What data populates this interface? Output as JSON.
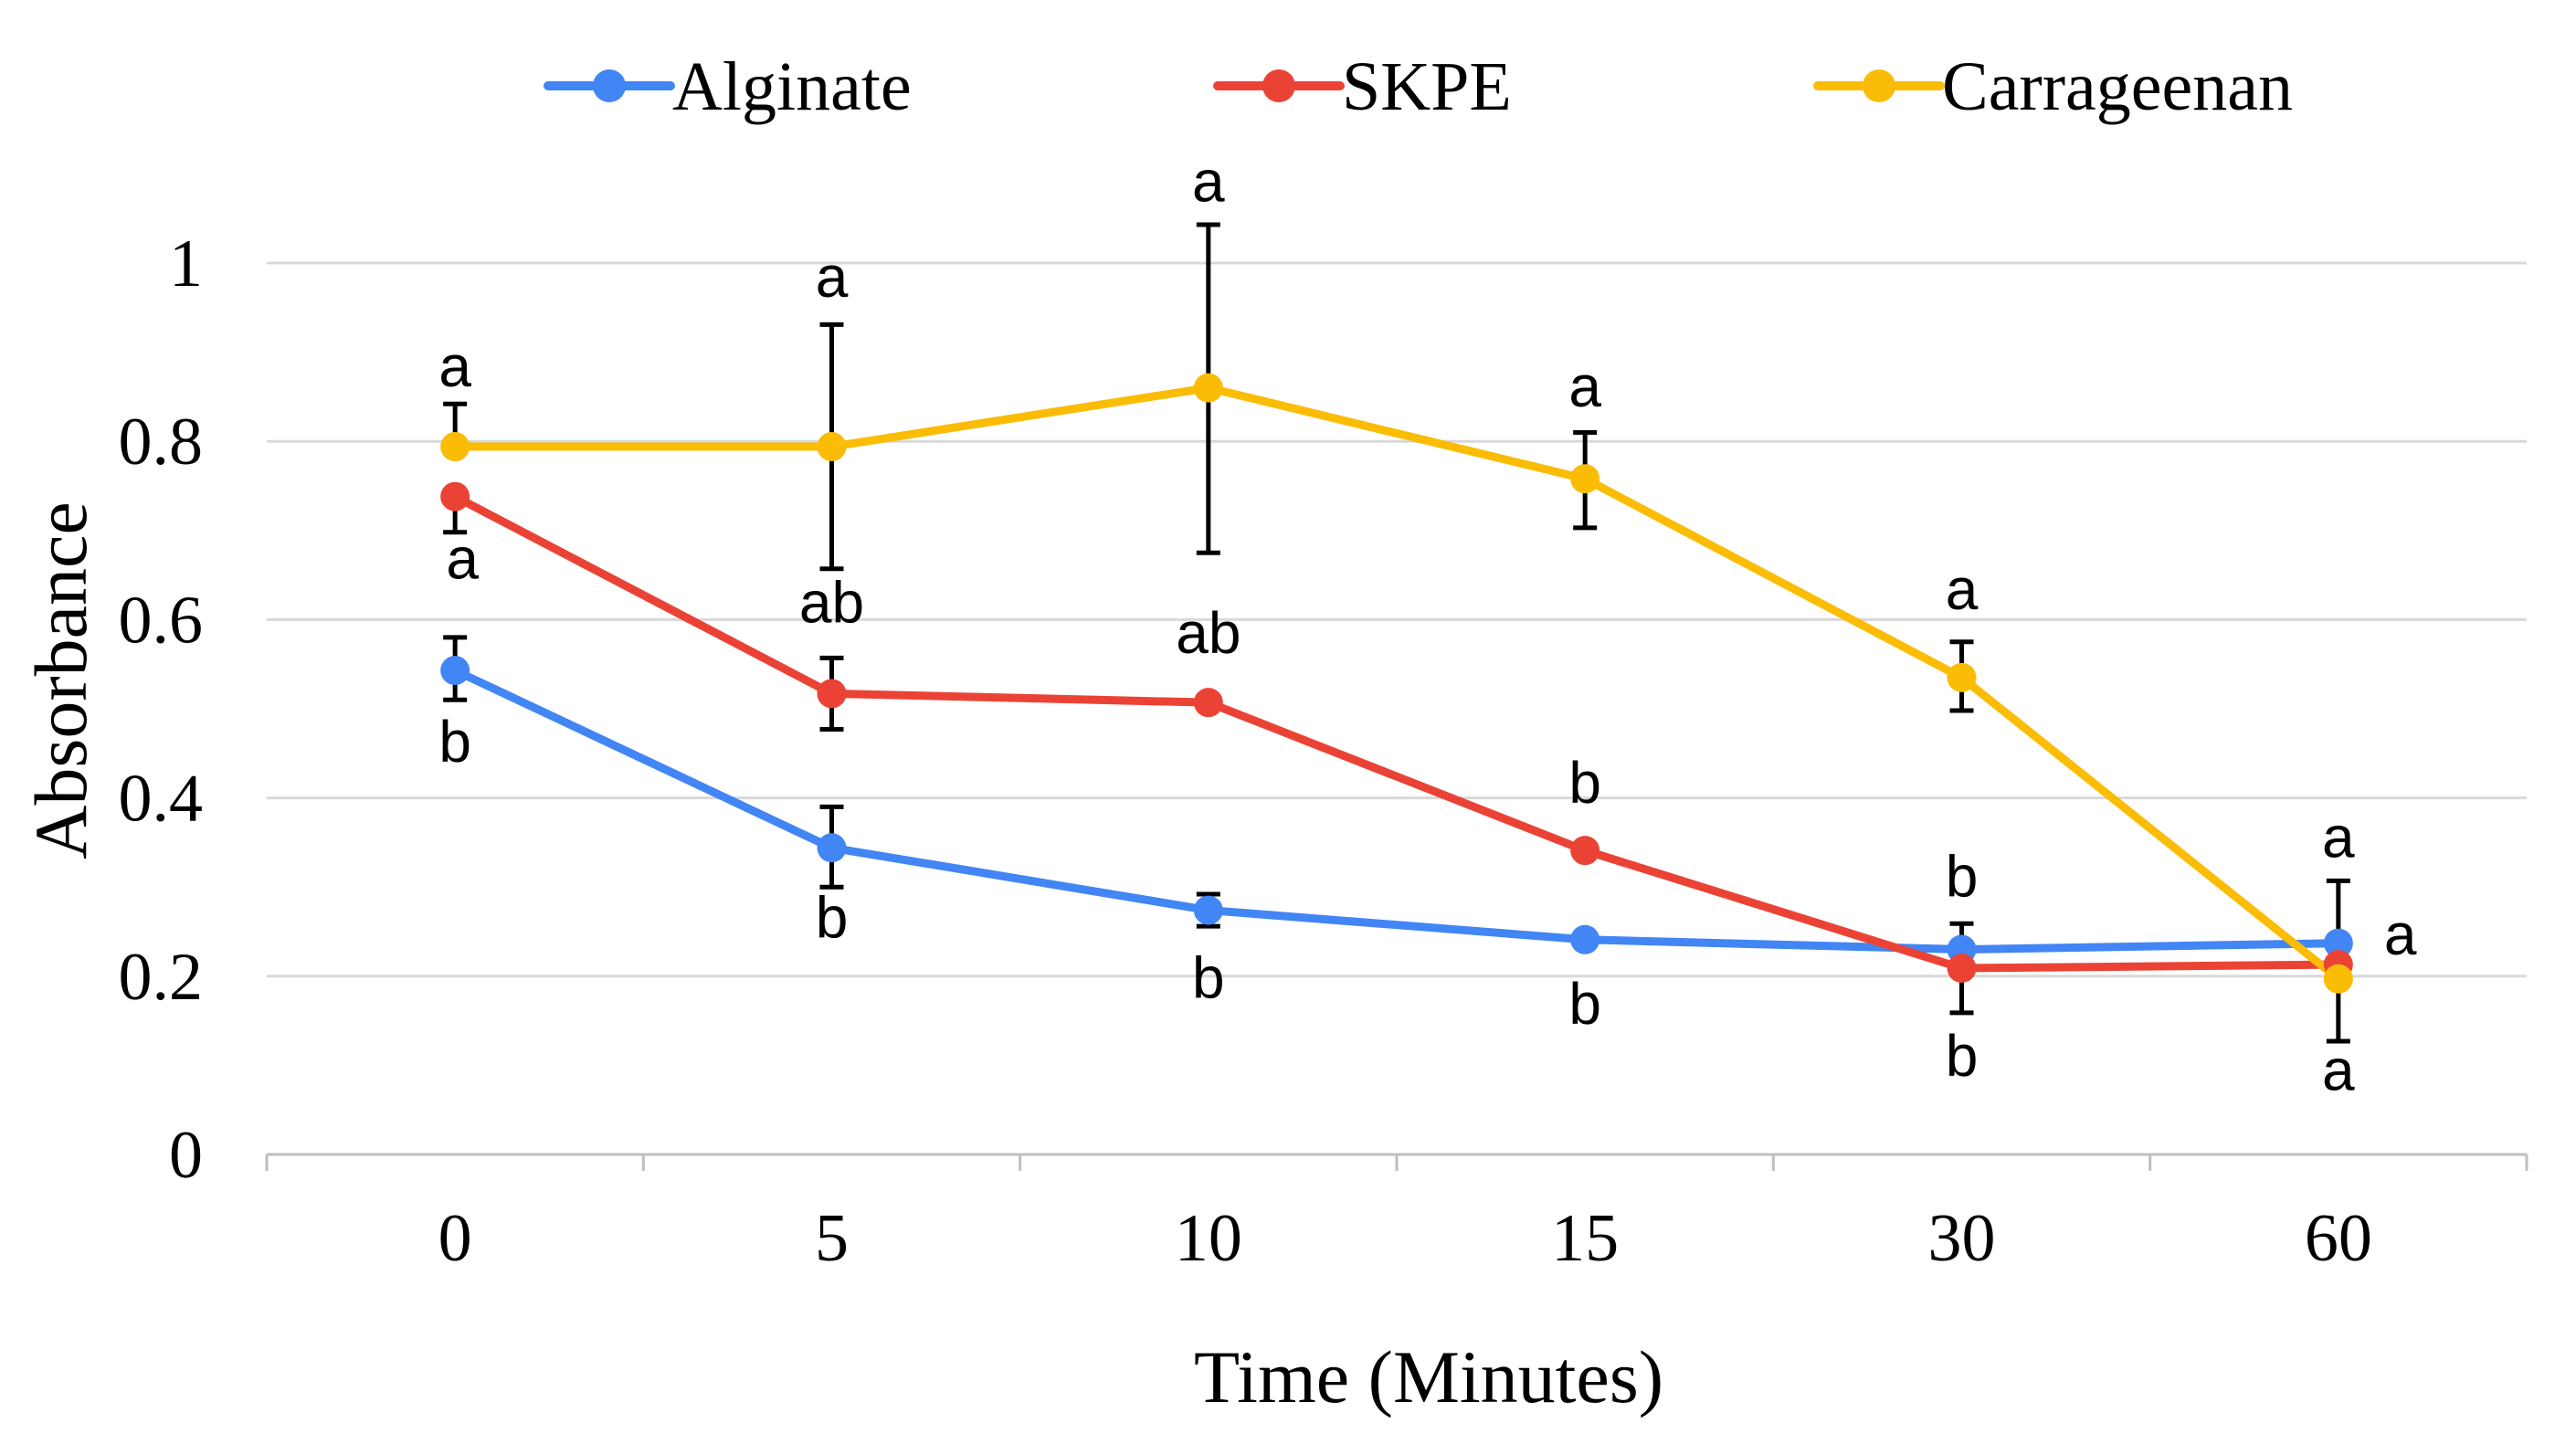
{
  "chart_data": {
    "type": "line",
    "title": "",
    "xlabel": "Time (Minutes)",
    "ylabel": "Absorbance",
    "categories": [
      "0",
      "5",
      "10",
      "15",
      "30",
      "60"
    ],
    "yticks": [
      "0",
      "0.2",
      "0.4",
      "0.6",
      "0.8",
      "1"
    ],
    "ylim": [
      0,
      1
    ],
    "grid": true,
    "legend_position": "top",
    "series": [
      {
        "name": "Alginate",
        "color": "#4285F4",
        "values": [
          0.543,
          0.344,
          0.274,
          0.241,
          0.23,
          0.237
        ],
        "err_upper": [
          0.037,
          0.046,
          0.018,
          0.0,
          0.0,
          0.0
        ],
        "err_lower": [
          0.033,
          0.044,
          0.018,
          0.0,
          0.0,
          0.0
        ],
        "letters": [
          "b",
          "b",
          "b",
          "b",
          "b",
          "a"
        ]
      },
      {
        "name": "SKPE",
        "color": "#EA4335",
        "values": [
          0.738,
          0.517,
          0.507,
          0.341,
          0.209,
          0.213
        ],
        "err_upper": [
          0.0,
          0.04,
          0.0,
          0.0,
          0.05,
          0.0
        ],
        "err_lower": [
          0.04,
          0.04,
          0.0,
          0.0,
          0.05,
          0.0
        ],
        "letters": [
          "a",
          "ab",
          "ab",
          "b",
          "b",
          "a"
        ]
      },
      {
        "name": "Carrageenan",
        "color": "#FBBC05",
        "values": [
          0.794,
          0.794,
          0.86,
          0.758,
          0.535,
          0.197
        ],
        "err_upper": [
          0.048,
          0.137,
          0.183,
          0.052,
          0.04,
          0.11
        ],
        "err_lower": [
          0.0,
          0.137,
          0.185,
          0.055,
          0.037,
          0.07
        ],
        "letters": [
          "a",
          "a",
          "a",
          "a",
          "a",
          "a"
        ]
      }
    ]
  }
}
